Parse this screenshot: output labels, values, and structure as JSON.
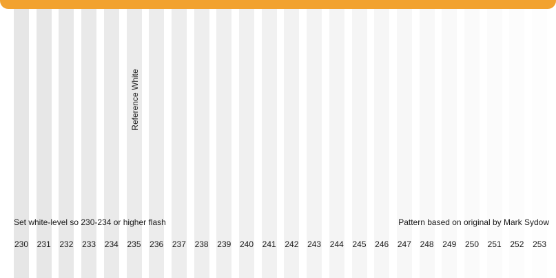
{
  "header": {
    "accent_color": "#f2a22f"
  },
  "pattern": {
    "reference_label": "Reference White",
    "instruction": "Set white-level so 230-234 or higher flash",
    "credit": "Pattern based on original by Mark Sydow",
    "levels": [
      "230",
      "231",
      "232",
      "233",
      "234",
      "235",
      "236",
      "237",
      "238",
      "239",
      "240",
      "241",
      "242",
      "243",
      "244",
      "245",
      "246",
      "247",
      "248",
      "249",
      "250",
      "251",
      "252",
      "253"
    ]
  }
}
